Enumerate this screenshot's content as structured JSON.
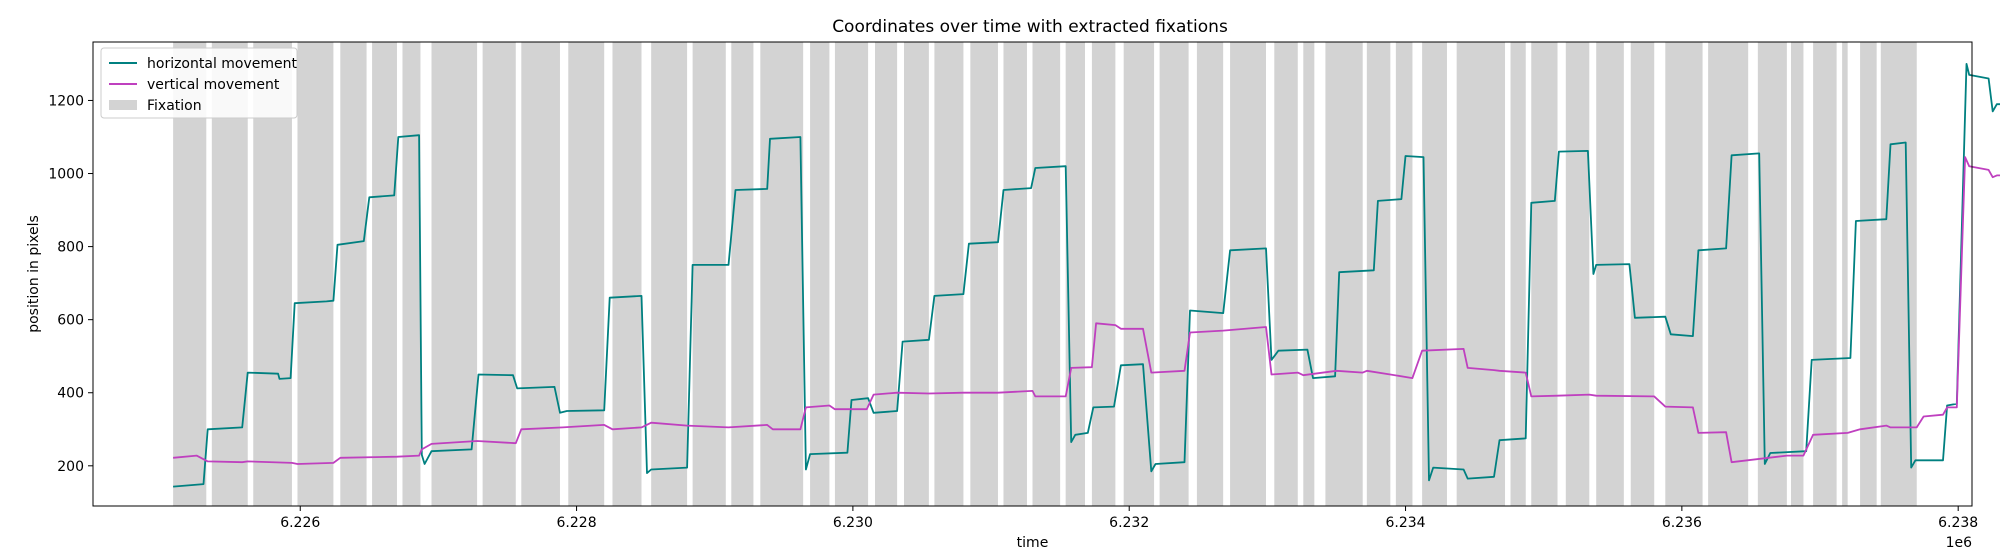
{
  "chart_data": {
    "type": "line",
    "title": "Coordinates over time with extracted fixations",
    "xlabel": "time",
    "ylabel": "position in pixels",
    "x_offset_label": "1e6",
    "xlim": [
      6224500,
      6238100
    ],
    "ylim": [
      90,
      1360
    ],
    "x_ticks": [
      6226000,
      6228000,
      6230000,
      6232000,
      6234000,
      6236000,
      6238000
    ],
    "x_tick_labels": [
      "6.226",
      "6.228",
      "6.230",
      "6.232",
      "6.234",
      "6.236",
      "6.238"
    ],
    "y_ticks": [
      200,
      400,
      600,
      800,
      1000,
      1200
    ],
    "y_tick_labels": [
      "200",
      "400",
      "600",
      "800",
      "1000",
      "1200"
    ],
    "grid": false,
    "legend": {
      "placement": "top-left",
      "entries": [
        {
          "label": "horizontal movement",
          "color": "#008080",
          "kind": "line"
        },
        {
          "label": "vertical movement",
          "color": "#BF40BF",
          "kind": "line"
        },
        {
          "label": "Fixation",
          "color": "#D3D3D3",
          "kind": "patch"
        }
      ]
    },
    "fixations": [
      [
        6225080,
        6225320
      ],
      [
        6225360,
        6225620
      ],
      [
        6225660,
        6225940
      ],
      [
        6225980,
        6226240
      ],
      [
        6226290,
        6226480
      ],
      [
        6226520,
        6226700
      ],
      [
        6226740,
        6226870
      ],
      [
        6226950,
        6227280
      ],
      [
        6227320,
        6227560
      ],
      [
        6227600,
        6227880
      ],
      [
        6227940,
        6228200
      ],
      [
        6228260,
        6228470
      ],
      [
        6228540,
        6228800
      ],
      [
        6228840,
        6229080
      ],
      [
        6229120,
        6229280
      ],
      [
        6229330,
        6229640
      ],
      [
        6229690,
        6229830
      ],
      [
        6229870,
        6230110
      ],
      [
        6230160,
        6230320
      ],
      [
        6230370,
        6230550
      ],
      [
        6230590,
        6230800
      ],
      [
        6230850,
        6231050
      ],
      [
        6231090,
        6231260
      ],
      [
        6231300,
        6231500
      ],
      [
        6231540,
        6231680
      ],
      [
        6231730,
        6231900
      ],
      [
        6231960,
        6232180
      ],
      [
        6232220,
        6232430
      ],
      [
        6232490,
        6232680
      ],
      [
        6232730,
        6232990
      ],
      [
        6233050,
        6233220
      ],
      [
        6233260,
        6233340
      ],
      [
        6233420,
        6233690
      ],
      [
        6233720,
        6233890
      ],
      [
        6233930,
        6234050
      ],
      [
        6234120,
        6234300
      ],
      [
        6234370,
        6234720
      ],
      [
        6234760,
        6234870
      ],
      [
        6234910,
        6235100
      ],
      [
        6235160,
        6235330
      ],
      [
        6235380,
        6235580
      ],
      [
        6235630,
        6235800
      ],
      [
        6235880,
        6236150
      ],
      [
        6236190,
        6236480
      ],
      [
        6236550,
        6236760
      ],
      [
        6236790,
        6236880
      ],
      [
        6236950,
        6237120
      ],
      [
        6237160,
        6237200
      ],
      [
        6237290,
        6237410
      ],
      [
        6237440,
        6237700
      ]
    ],
    "series": [
      {
        "name": "horizontal movement",
        "color": "#008080",
        "points": [
          [
            6225080,
            143
          ],
          [
            6225300,
            150
          ],
          [
            6225330,
            300
          ],
          [
            6225580,
            305
          ],
          [
            6225620,
            455
          ],
          [
            6225840,
            452
          ],
          [
            6225850,
            438
          ],
          [
            6225930,
            440
          ],
          [
            6225960,
            645
          ],
          [
            6226190,
            650
          ],
          [
            6226240,
            652
          ],
          [
            6226270,
            805
          ],
          [
            6226460,
            815
          ],
          [
            6226500,
            935
          ],
          [
            6226680,
            940
          ],
          [
            6226710,
            1100
          ],
          [
            6226860,
            1105
          ],
          [
            6226880,
            230
          ],
          [
            6226900,
            205
          ],
          [
            6226950,
            240
          ],
          [
            6227240,
            245
          ],
          [
            6227290,
            450
          ],
          [
            6227540,
            448
          ],
          [
            6227570,
            412
          ],
          [
            6227840,
            416
          ],
          [
            6227880,
            345
          ],
          [
            6227930,
            350
          ],
          [
            6228200,
            352
          ],
          [
            6228240,
            660
          ],
          [
            6228470,
            665
          ],
          [
            6228510,
            180
          ],
          [
            6228540,
            190
          ],
          [
            6228800,
            195
          ],
          [
            6228840,
            750
          ],
          [
            6229100,
            750
          ],
          [
            6229150,
            955
          ],
          [
            6229380,
            958
          ],
          [
            6229400,
            1095
          ],
          [
            6229620,
            1100
          ],
          [
            6229660,
            190
          ],
          [
            6229690,
            232
          ],
          [
            6229960,
            236
          ],
          [
            6229990,
            380
          ],
          [
            6230110,
            385
          ],
          [
            6230150,
            345
          ],
          [
            6230320,
            350
          ],
          [
            6230360,
            540
          ],
          [
            6230550,
            545
          ],
          [
            6230590,
            665
          ],
          [
            6230800,
            670
          ],
          [
            6230840,
            808
          ],
          [
            6231050,
            812
          ],
          [
            6231090,
            955
          ],
          [
            6231290,
            960
          ],
          [
            6231320,
            1015
          ],
          [
            6231540,
            1020
          ],
          [
            6231580,
            265
          ],
          [
            6231610,
            285
          ],
          [
            6231700,
            290
          ],
          [
            6231740,
            360
          ],
          [
            6231890,
            362
          ],
          [
            6231940,
            475
          ],
          [
            6232100,
            478
          ],
          [
            6232160,
            185
          ],
          [
            6232190,
            205
          ],
          [
            6232400,
            210
          ],
          [
            6232440,
            625
          ],
          [
            6232680,
            618
          ],
          [
            6232730,
            790
          ],
          [
            6232990,
            795
          ],
          [
            6233030,
            490
          ],
          [
            6233080,
            515
          ],
          [
            6233290,
            518
          ],
          [
            6233330,
            440
          ],
          [
            6233490,
            445
          ],
          [
            6233520,
            730
          ],
          [
            6233770,
            735
          ],
          [
            6233800,
            925
          ],
          [
            6233970,
            930
          ],
          [
            6234000,
            1048
          ],
          [
            6234130,
            1045
          ],
          [
            6234170,
            160
          ],
          [
            6234200,
            195
          ],
          [
            6234420,
            190
          ],
          [
            6234450,
            165
          ],
          [
            6234640,
            170
          ],
          [
            6234680,
            270
          ],
          [
            6234870,
            275
          ],
          [
            6234910,
            920
          ],
          [
            6235080,
            925
          ],
          [
            6235110,
            1060
          ],
          [
            6235320,
            1062
          ],
          [
            6235360,
            725
          ],
          [
            6235380,
            750
          ],
          [
            6235620,
            752
          ],
          [
            6235660,
            605
          ],
          [
            6235880,
            608
          ],
          [
            6235920,
            560
          ],
          [
            6236080,
            555
          ],
          [
            6236120,
            790
          ],
          [
            6236320,
            795
          ],
          [
            6236360,
            1050
          ],
          [
            6236560,
            1055
          ],
          [
            6236600,
            205
          ],
          [
            6236640,
            235
          ],
          [
            6236900,
            240
          ],
          [
            6236940,
            490
          ],
          [
            6237220,
            495
          ],
          [
            6237260,
            870
          ],
          [
            6237480,
            875
          ],
          [
            6237510,
            1080
          ],
          [
            6237620,
            1085
          ],
          [
            6237660,
            195
          ],
          [
            6237690,
            215
          ],
          [
            6237890,
            215
          ],
          [
            6237920,
            365
          ],
          [
            6237990,
            370
          ],
          [
            6238060,
            1300
          ],
          [
            6238080,
            1270
          ],
          [
            6238220,
            1260
          ],
          [
            6238250,
            1170
          ],
          [
            6238280,
            1190
          ],
          [
            6238500,
            1188
          ]
        ]
      },
      {
        "name": "vertical movement",
        "color": "#BF40BF",
        "points": [
          [
            6225080,
            222
          ],
          [
            6225250,
            228
          ],
          [
            6225330,
            212
          ],
          [
            6225580,
            210
          ],
          [
            6225620,
            212
          ],
          [
            6225940,
            208
          ],
          [
            6225980,
            205
          ],
          [
            6226240,
            208
          ],
          [
            6226290,
            222
          ],
          [
            6226700,
            225
          ],
          [
            6226860,
            228
          ],
          [
            6226880,
            245
          ],
          [
            6226950,
            260
          ],
          [
            6227280,
            268
          ],
          [
            6227560,
            262
          ],
          [
            6227600,
            300
          ],
          [
            6227900,
            305
          ],
          [
            6228200,
            312
          ],
          [
            6228260,
            300
          ],
          [
            6228470,
            305
          ],
          [
            6228540,
            318
          ],
          [
            6228800,
            310
          ],
          [
            6229100,
            305
          ],
          [
            6229380,
            312
          ],
          [
            6229420,
            300
          ],
          [
            6229620,
            300
          ],
          [
            6229660,
            360
          ],
          [
            6229830,
            365
          ],
          [
            6229870,
            355
          ],
          [
            6230100,
            355
          ],
          [
            6230150,
            395
          ],
          [
            6230320,
            400
          ],
          [
            6230550,
            398
          ],
          [
            6230800,
            400
          ],
          [
            6231050,
            400
          ],
          [
            6231300,
            405
          ],
          [
            6231320,
            390
          ],
          [
            6231540,
            390
          ],
          [
            6231580,
            468
          ],
          [
            6231730,
            470
          ],
          [
            6231760,
            590
          ],
          [
            6231900,
            585
          ],
          [
            6231940,
            575
          ],
          [
            6232100,
            575
          ],
          [
            6232160,
            455
          ],
          [
            6232400,
            460
          ],
          [
            6232440,
            565
          ],
          [
            6232680,
            570
          ],
          [
            6232990,
            580
          ],
          [
            6233030,
            450
          ],
          [
            6233220,
            455
          ],
          [
            6233260,
            448
          ],
          [
            6233500,
            460
          ],
          [
            6233690,
            455
          ],
          [
            6233720,
            460
          ],
          [
            6233890,
            450
          ],
          [
            6234050,
            440
          ],
          [
            6234120,
            515
          ],
          [
            6234420,
            520
          ],
          [
            6234450,
            468
          ],
          [
            6234640,
            462
          ],
          [
            6234680,
            460
          ],
          [
            6234870,
            455
          ],
          [
            6234910,
            390
          ],
          [
            6235100,
            392
          ],
          [
            6235330,
            395
          ],
          [
            6235380,
            392
          ],
          [
            6235800,
            390
          ],
          [
            6235880,
            362
          ],
          [
            6236080,
            360
          ],
          [
            6236120,
            290
          ],
          [
            6236320,
            292
          ],
          [
            6236360,
            210
          ],
          [
            6236760,
            228
          ],
          [
            6236880,
            228
          ],
          [
            6236950,
            285
          ],
          [
            6237200,
            290
          ],
          [
            6237290,
            300
          ],
          [
            6237480,
            310
          ],
          [
            6237510,
            305
          ],
          [
            6237700,
            305
          ],
          [
            6237750,
            335
          ],
          [
            6237890,
            340
          ],
          [
            6237920,
            360
          ],
          [
            6237990,
            360
          ],
          [
            6238050,
            1045
          ],
          [
            6238080,
            1020
          ],
          [
            6238220,
            1010
          ],
          [
            6238250,
            990
          ],
          [
            6238280,
            995
          ],
          [
            6238500,
            995
          ]
        ]
      }
    ]
  }
}
